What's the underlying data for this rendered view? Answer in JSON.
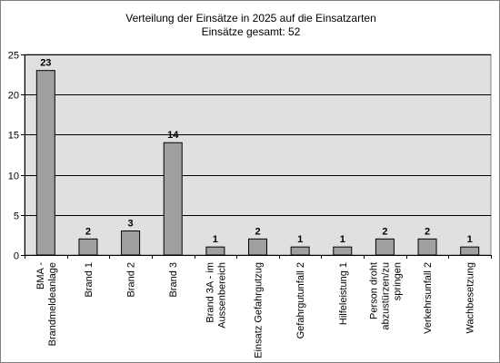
{
  "chart_data": {
    "type": "bar",
    "title": "Verteilung der Einsätze in 2025 auf die Einsatzarten",
    "subtitle": "Einsätze gesamt: 52",
    "xlabel": "",
    "ylabel": "",
    "categories": [
      "BMA - Brandmeldeanlage",
      "Brand 1",
      "Brand 2",
      "Brand 3",
      "Brand 3A - im Aussenbereich",
      "Einsatz Gefahrgutzug",
      "Gefahrgutunfall 2",
      "Hilfeleistung 1",
      "Person droht abzustürzen/zu springen",
      "Verkehrsunfall 2",
      "Wachbesetzung"
    ],
    "category_lines": [
      [
        "BMA -",
        "Brandmeldeanlage"
      ],
      [
        "Brand 1"
      ],
      [
        "Brand 2"
      ],
      [
        "Brand 3"
      ],
      [
        "Brand 3A - im",
        "Aussenbereich"
      ],
      [
        "Einsatz Gefahrgutzug"
      ],
      [
        "Gefahrgutunfall 2"
      ],
      [
        "Hilfeleistung 1"
      ],
      [
        "Person droht",
        "abzustürzen/zu",
        "springen"
      ],
      [
        "Verkehrsunfall 2"
      ],
      [
        "Wachbesetzung"
      ]
    ],
    "values": [
      23,
      2,
      3,
      14,
      1,
      2,
      1,
      1,
      2,
      2,
      1
    ],
    "ylim": [
      0,
      25
    ],
    "yticks": [
      0,
      5,
      10,
      15,
      20,
      25
    ],
    "grid": true,
    "legend": "none",
    "colors": {
      "bar": "#a0a0a0",
      "bar_border": "#000000",
      "plot_background": "#e0e0e0",
      "gridline": "#000000"
    }
  }
}
